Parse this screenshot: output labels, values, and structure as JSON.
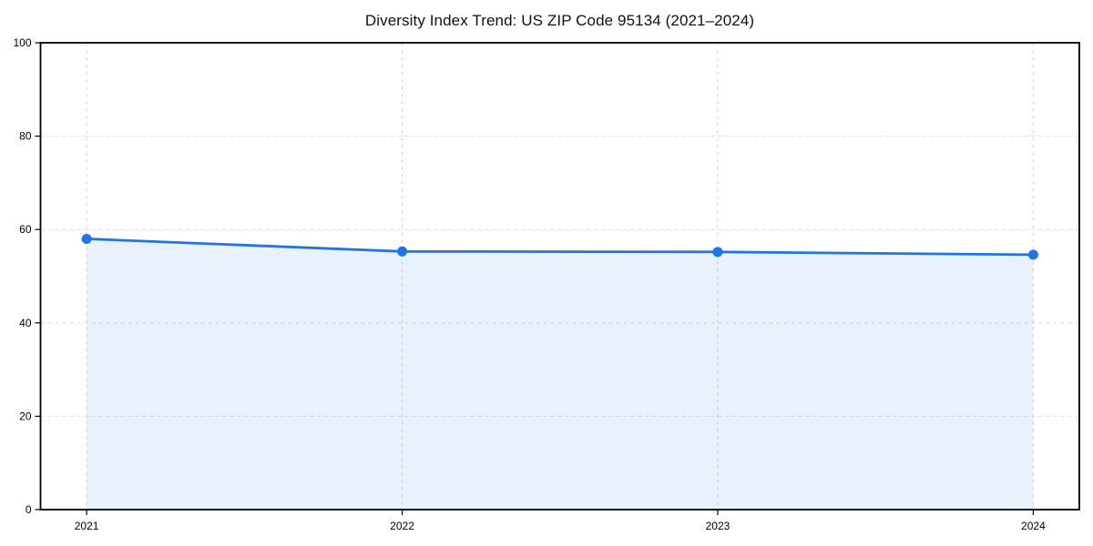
{
  "page": {
    "background_color": "#ffffff"
  },
  "chart_data": {
    "type": "line",
    "title": "Diversity Index Trend: US ZIP Code 95134 (2021–2024)",
    "categories": [
      "2021",
      "2022",
      "2023",
      "2024"
    ],
    "values": [
      58.0,
      55.3,
      55.2,
      54.6
    ],
    "xlabel": "",
    "ylabel": "",
    "ylim": [
      0,
      100
    ],
    "yticks": [
      0,
      20,
      40,
      60,
      80,
      100
    ],
    "grid": "dashed",
    "legend": "none",
    "area_fill": true,
    "marker": "circle",
    "colors": {
      "line": "#2273e5",
      "marker": "#2273e5",
      "fill": "#2273e5",
      "fill_opacity": 0.1,
      "grid": "#d9d9d9",
      "axis": "#000000",
      "text": "#000000",
      "title": "#111111"
    }
  }
}
